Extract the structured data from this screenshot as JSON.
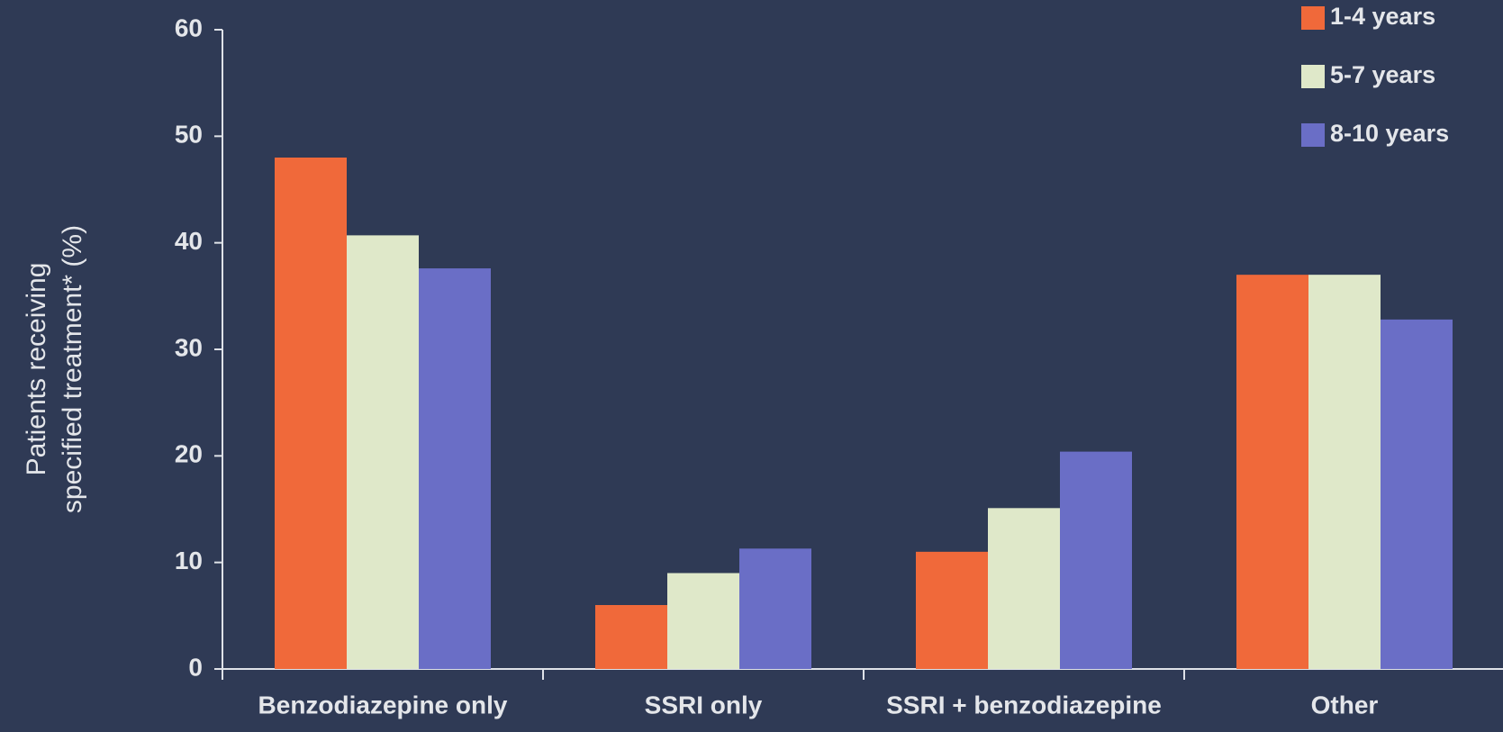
{
  "chart_data": {
    "type": "bar",
    "y_label": [
      "Patients receiving",
      "specified treatment* (%)"
    ],
    "categories": [
      "Benzodiazepine only",
      "SSRI only",
      "SSRI + benzodiazepine",
      "Other"
    ],
    "series": [
      {
        "name": "1-4 years",
        "color": "#f0693a",
        "values": [
          48,
          6,
          11,
          37
        ]
      },
      {
        "name": "5-7 years",
        "color": "#dfe8c9",
        "values": [
          40.7,
          9,
          15.1,
          37
        ]
      },
      {
        "name": "8-10 years",
        "color": "#6a6ec6",
        "values": [
          37.6,
          11.3,
          20.4,
          32.8
        ]
      }
    ],
    "ylim": [
      0,
      60
    ],
    "yticks": [
      0,
      10,
      20,
      30,
      40,
      50,
      60
    ],
    "legend": "top-right"
  }
}
